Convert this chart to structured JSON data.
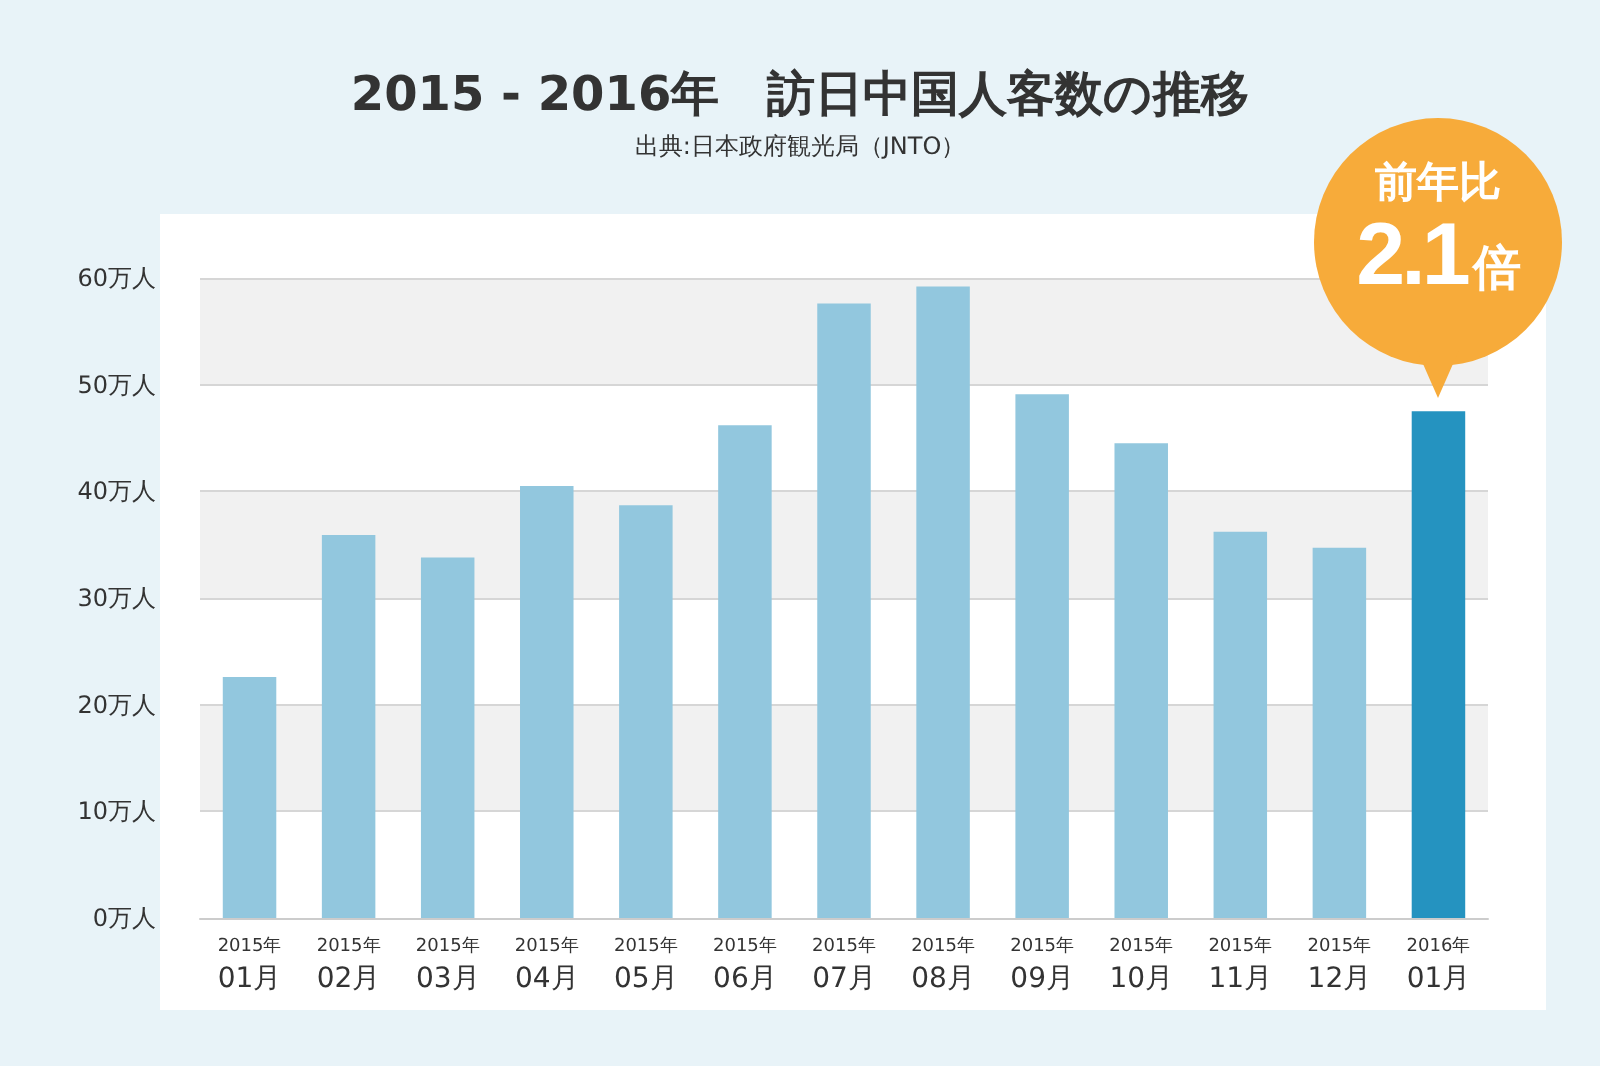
{
  "chart_data": {
    "type": "bar",
    "title": "2015 - 2016年　訪日中国人客数の推移",
    "categories": [
      "2015年\n01月",
      "2015年\n02月",
      "2015年\n03月",
      "2015年\n04月",
      "2015年\n05月",
      "2015年\n06月",
      "2015年\n07月",
      "2015年\n08月",
      "2015年\n09月",
      "2015年\n10月",
      "2015年\n11月",
      "2015年\n12月",
      "2016年\n01月"
    ],
    "values": [
      22.6,
      35.9,
      33.8,
      40.5,
      38.7,
      46.2,
      57.6,
      59.2,
      49.1,
      44.5,
      36.2,
      34.7,
      47.5
    ],
    "colors": [
      "#92c7de",
      "#92c7de",
      "#92c7de",
      "#92c7de",
      "#92c7de",
      "#92c7de",
      "#92c7de",
      "#92c7de",
      "#92c7de",
      "#92c7de",
      "#92c7de",
      "#92c7de",
      "#2593c0"
    ],
    "ylim": [
      0,
      60
    ],
    "yticks": [
      {
        "value": 0,
        "label": "0万人"
      },
      {
        "value": 10,
        "label": "10万人"
      },
      {
        "value": 20,
        "label": "20万人"
      },
      {
        "value": 30,
        "label": "30万人"
      },
      {
        "value": 40,
        "label": "40万人"
      },
      {
        "value": 50,
        "label": "50万人"
      },
      {
        "value": 60,
        "label": "60万人"
      }
    ],
    "grid": "y",
    "annotations": [
      "出典:日本政府観光局（JNTO）",
      {
        "text": "前年比\n2.1倍",
        "x": "2016年\n01月",
        "y": 47.5
      }
    ]
  }
}
